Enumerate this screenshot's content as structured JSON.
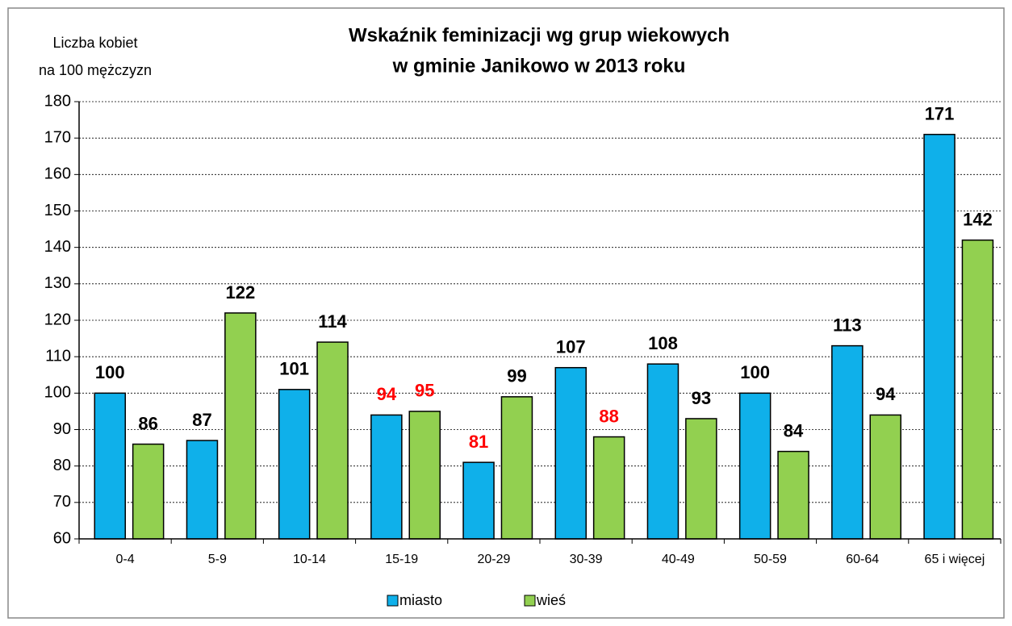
{
  "chart_data": {
    "type": "bar",
    "title": [
      "Wskaźnik feminizacji wg grup wiekowych",
      "w gminie Janikowo w 2013 roku"
    ],
    "y_label": [
      "Liczba kobiet",
      "na 100 mężczyzn"
    ],
    "categories": [
      "0-4",
      "5-9",
      "10-14",
      "15-19",
      "20-29",
      "30-39",
      "40-49",
      "50-59",
      "60-64",
      "65 i więcej"
    ],
    "series": [
      {
        "name": "miasto",
        "color": "#0fb0ea",
        "values": [
          100,
          87,
          101,
          94,
          81,
          107,
          108,
          100,
          113,
          171
        ],
        "value_label_colors": [
          "#000000",
          "#000000",
          "#000000",
          "#ff0000",
          "#ff0000",
          "#000000",
          "#000000",
          "#000000",
          "#000000",
          "#000000"
        ]
      },
      {
        "name": "wieś",
        "color": "#92d050",
        "values": [
          86,
          122,
          114,
          95,
          99,
          88,
          93,
          84,
          94,
          142
        ],
        "value_label_colors": [
          "#000000",
          "#000000",
          "#000000",
          "#ff0000",
          "#000000",
          "#ff0000",
          "#000000",
          "#000000",
          "#000000",
          "#000000"
        ]
      }
    ],
    "ylim": [
      60,
      180
    ],
    "yticks": [
      60,
      70,
      80,
      90,
      100,
      110,
      120,
      130,
      140,
      150,
      160,
      170,
      180
    ],
    "grid": true,
    "legend": "bottom"
  }
}
